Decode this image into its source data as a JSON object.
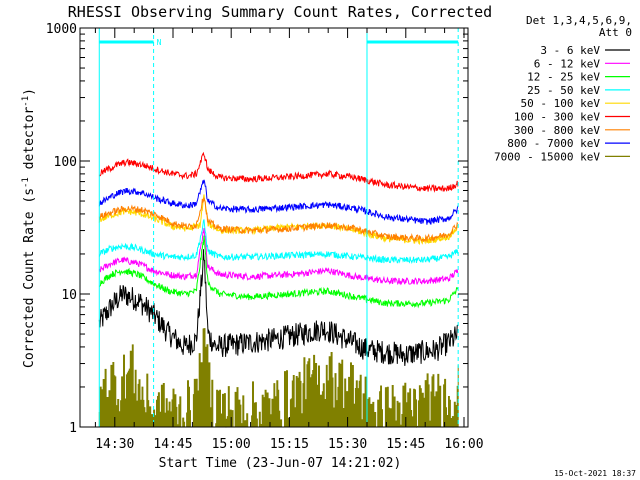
{
  "chart_data": {
    "type": "line",
    "title": "RHESSI Observing Summary Count Rates, Corrected",
    "xlabel": "Start Time (23-Jun-07 14:21:02)",
    "ylabel_main": "Corrected Count Rate (s",
    "ylabel_sup1": "-1",
    "ylabel_mid": " detector",
    "ylabel_sup2": "-1",
    "ylabel_end": ")",
    "timestamp": "15-Oct-2021 18:37",
    "y_scale": "log",
    "ylim": [
      1,
      1000
    ],
    "xlim": [
      "14:21",
      "16:01"
    ],
    "x_tick_labels": [
      "14:30",
      "14:45",
      "15:00",
      "15:15",
      "15:30",
      "15:45",
      "16:00"
    ],
    "x_tick_minutes": [
      30,
      45,
      60,
      75,
      90,
      105,
      120
    ],
    "y_tick_labels": [
      {
        "label": "1",
        "value": 1
      },
      {
        "label": "10",
        "value": 10
      },
      {
        "label": "100",
        "value": 100
      },
      {
        "label": "1000",
        "value": 1000
      }
    ],
    "legend_header": [
      "Det 1,3,4,5,6,9,",
      "Att 0"
    ],
    "legend_position": "right",
    "night_markers": [
      {
        "from_min": 26.0,
        "to_min": 40.0,
        "label": "N"
      },
      {
        "from_min": 95.0,
        "to_min": 118.5,
        "label": ""
      }
    ],
    "series": [
      {
        "name": "3 - 6 keV",
        "color": "#000000",
        "points": [
          [
            26,
            6
          ],
          [
            29,
            8
          ],
          [
            32,
            10
          ],
          [
            36,
            9
          ],
          [
            40,
            7
          ],
          [
            44,
            5
          ],
          [
            48,
            4
          ],
          [
            51,
            4.5
          ],
          [
            53,
            20
          ],
          [
            54,
            5
          ],
          [
            56,
            4
          ],
          [
            62,
            4.2
          ],
          [
            70,
            4.5
          ],
          [
            78,
            5
          ],
          [
            84,
            5.5
          ],
          [
            90,
            4.5
          ],
          [
            95,
            3.8
          ],
          [
            105,
            3.5
          ],
          [
            113,
            3.8
          ],
          [
            117,
            4.5
          ],
          [
            118.5,
            5
          ]
        ]
      },
      {
        "name": "6 - 12 keV",
        "color": "#ff00ff",
        "points": [
          [
            26,
            15
          ],
          [
            29,
            17
          ],
          [
            32,
            18
          ],
          [
            36,
            17
          ],
          [
            40,
            15
          ],
          [
            44,
            14
          ],
          [
            48,
            13.5
          ],
          [
            51,
            14
          ],
          [
            53,
            32
          ],
          [
            54,
            16
          ],
          [
            57,
            14
          ],
          [
            65,
            13.5
          ],
          [
            75,
            14
          ],
          [
            85,
            15
          ],
          [
            92,
            13.5
          ],
          [
            100,
            12.5
          ],
          [
            110,
            12.5
          ],
          [
            116,
            13
          ],
          [
            118.5,
            15
          ]
        ]
      },
      {
        "name": "12 - 25 keV",
        "color": "#00ff00",
        "points": [
          [
            26,
            12
          ],
          [
            29,
            14
          ],
          [
            32,
            15
          ],
          [
            36,
            14
          ],
          [
            40,
            12
          ],
          [
            44,
            10.5
          ],
          [
            48,
            10
          ],
          [
            51,
            10.5
          ],
          [
            53,
            27
          ],
          [
            54,
            12
          ],
          [
            57,
            10
          ],
          [
            65,
            9.5
          ],
          [
            75,
            10
          ],
          [
            85,
            10.5
          ],
          [
            92,
            9.5
          ],
          [
            100,
            8.5
          ],
          [
            110,
            8.5
          ],
          [
            116,
            9
          ],
          [
            118.5,
            11
          ]
        ]
      },
      {
        "name": "25 - 50 keV",
        "color": "#00ffff",
        "points": [
          [
            26,
            20
          ],
          [
            29,
            22
          ],
          [
            32,
            23
          ],
          [
            36,
            22
          ],
          [
            40,
            20
          ],
          [
            44,
            19
          ],
          [
            48,
            19
          ],
          [
            51,
            19.5
          ],
          [
            53,
            35
          ],
          [
            54,
            21
          ],
          [
            57,
            19
          ],
          [
            65,
            19
          ],
          [
            75,
            19.5
          ],
          [
            85,
            20
          ],
          [
            92,
            19
          ],
          [
            100,
            18
          ],
          [
            110,
            18
          ],
          [
            116,
            19
          ],
          [
            118.5,
            21
          ]
        ]
      },
      {
        "name": "50 - 100 keV",
        "color": "#ffd800",
        "points": [
          [
            26,
            36
          ],
          [
            30,
            40
          ],
          [
            33,
            42
          ],
          [
            37,
            40
          ],
          [
            41,
            36
          ],
          [
            45,
            32
          ],
          [
            49,
            31
          ],
          [
            52,
            33
          ],
          [
            53,
            55
          ],
          [
            54,
            34
          ],
          [
            57,
            30
          ],
          [
            65,
            30
          ],
          [
            75,
            32
          ],
          [
            85,
            33
          ],
          [
            92,
            30
          ],
          [
            100,
            26
          ],
          [
            110,
            25
          ],
          [
            116,
            27
          ],
          [
            118.5,
            32
          ]
        ]
      },
      {
        "name": "100 - 300 keV",
        "color": "#ff0000",
        "points": [
          [
            26,
            80
          ],
          [
            30,
            92
          ],
          [
            33,
            98
          ],
          [
            37,
            94
          ],
          [
            41,
            86
          ],
          [
            45,
            80
          ],
          [
            49,
            77
          ],
          [
            51,
            80
          ],
          [
            53,
            115
          ],
          [
            54,
            86
          ],
          [
            57,
            75
          ],
          [
            65,
            73
          ],
          [
            75,
            76
          ],
          [
            85,
            80
          ],
          [
            92,
            75
          ],
          [
            100,
            66
          ],
          [
            110,
            62
          ],
          [
            116,
            62
          ],
          [
            118.5,
            68
          ]
        ]
      },
      {
        "name": "300 - 800 keV",
        "color": "#ff8000",
        "points": [
          [
            26,
            38
          ],
          [
            30,
            42
          ],
          [
            33,
            44
          ],
          [
            37,
            43
          ],
          [
            41,
            39
          ],
          [
            45,
            34
          ],
          [
            49,
            32
          ],
          [
            51,
            33
          ],
          [
            53,
            55
          ],
          [
            54,
            35
          ],
          [
            57,
            31
          ],
          [
            65,
            30
          ],
          [
            75,
            31
          ],
          [
            85,
            33
          ],
          [
            92,
            31
          ],
          [
            100,
            27
          ],
          [
            110,
            26
          ],
          [
            116,
            28
          ],
          [
            118.5,
            34
          ]
        ]
      },
      {
        "name": "800 - 7000 keV",
        "color": "#0000ff",
        "points": [
          [
            26,
            48
          ],
          [
            30,
            56
          ],
          [
            33,
            60
          ],
          [
            37,
            58
          ],
          [
            41,
            52
          ],
          [
            45,
            48
          ],
          [
            49,
            46
          ],
          [
            51,
            48
          ],
          [
            53,
            72
          ],
          [
            54,
            50
          ],
          [
            57,
            44
          ],
          [
            65,
            43
          ],
          [
            75,
            45
          ],
          [
            85,
            47
          ],
          [
            92,
            44
          ],
          [
            100,
            38
          ],
          [
            110,
            35
          ],
          [
            116,
            37
          ],
          [
            118.5,
            44
          ]
        ]
      },
      {
        "name": "7000 - 15000 keV",
        "color": "#808000",
        "points": [
          [
            26,
            1.5
          ],
          [
            29,
            2.2
          ],
          [
            31,
            1.8
          ],
          [
            34,
            2.6
          ],
          [
            37,
            1.6
          ],
          [
            40,
            1.2
          ],
          [
            44,
            1.3
          ],
          [
            48,
            1.2
          ],
          [
            51,
            1.5
          ],
          [
            53,
            3.5
          ],
          [
            55,
            1.5
          ],
          [
            60,
            1.2
          ],
          [
            70,
            1.3
          ],
          [
            80,
            2.0
          ],
          [
            86,
            2.2
          ],
          [
            92,
            1.8
          ],
          [
            98,
            1.2
          ],
          [
            105,
            1.3
          ],
          [
            112,
            1.5
          ],
          [
            118.5,
            1.8
          ]
        ]
      }
    ]
  }
}
